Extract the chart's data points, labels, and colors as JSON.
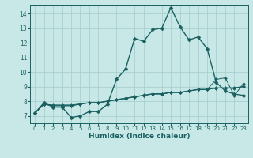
{
  "title": "",
  "xlabel": "Humidex (Indice chaleur)",
  "background_color": "#c8e8e8",
  "grid_color": "#a8d0d0",
  "line_color": "#1a6060",
  "marker_color": "#1a6060",
  "xlim": [
    -0.5,
    23.5
  ],
  "ylim": [
    6.5,
    14.6
  ],
  "yticks": [
    7,
    8,
    9,
    10,
    11,
    12,
    13,
    14
  ],
  "xticks": [
    0,
    1,
    2,
    3,
    4,
    5,
    6,
    7,
    8,
    9,
    10,
    11,
    12,
    13,
    14,
    15,
    16,
    17,
    18,
    19,
    20,
    21,
    22,
    23
  ],
  "series": [
    [
      7.2,
      7.9,
      7.6,
      7.6,
      6.9,
      7.0,
      7.3,
      7.3,
      7.8,
      9.5,
      10.2,
      12.3,
      12.1,
      12.9,
      13.0,
      14.4,
      13.1,
      12.2,
      12.4,
      11.6,
      9.3,
      8.7,
      8.5,
      8.4
    ],
    [
      7.2,
      7.8,
      7.7,
      7.7,
      7.7,
      7.8,
      7.9,
      7.9,
      8.0,
      8.1,
      8.2,
      8.3,
      8.4,
      8.5,
      8.5,
      8.6,
      8.6,
      8.7,
      8.8,
      8.8,
      8.9,
      8.9,
      8.9,
      9.0
    ],
    [
      7.2,
      7.8,
      7.75,
      7.75,
      7.75,
      7.82,
      7.92,
      7.92,
      8.02,
      8.12,
      8.22,
      8.32,
      8.42,
      8.52,
      8.52,
      8.62,
      8.62,
      8.72,
      8.82,
      8.82,
      8.92,
      8.92,
      8.92,
      9.02
    ],
    [
      7.2,
      7.8,
      7.7,
      7.7,
      7.7,
      7.8,
      7.9,
      7.9,
      8.0,
      8.1,
      8.2,
      8.3,
      8.4,
      8.5,
      8.5,
      8.6,
      8.6,
      8.7,
      8.8,
      8.8,
      9.5,
      9.6,
      8.4,
      9.2
    ]
  ]
}
